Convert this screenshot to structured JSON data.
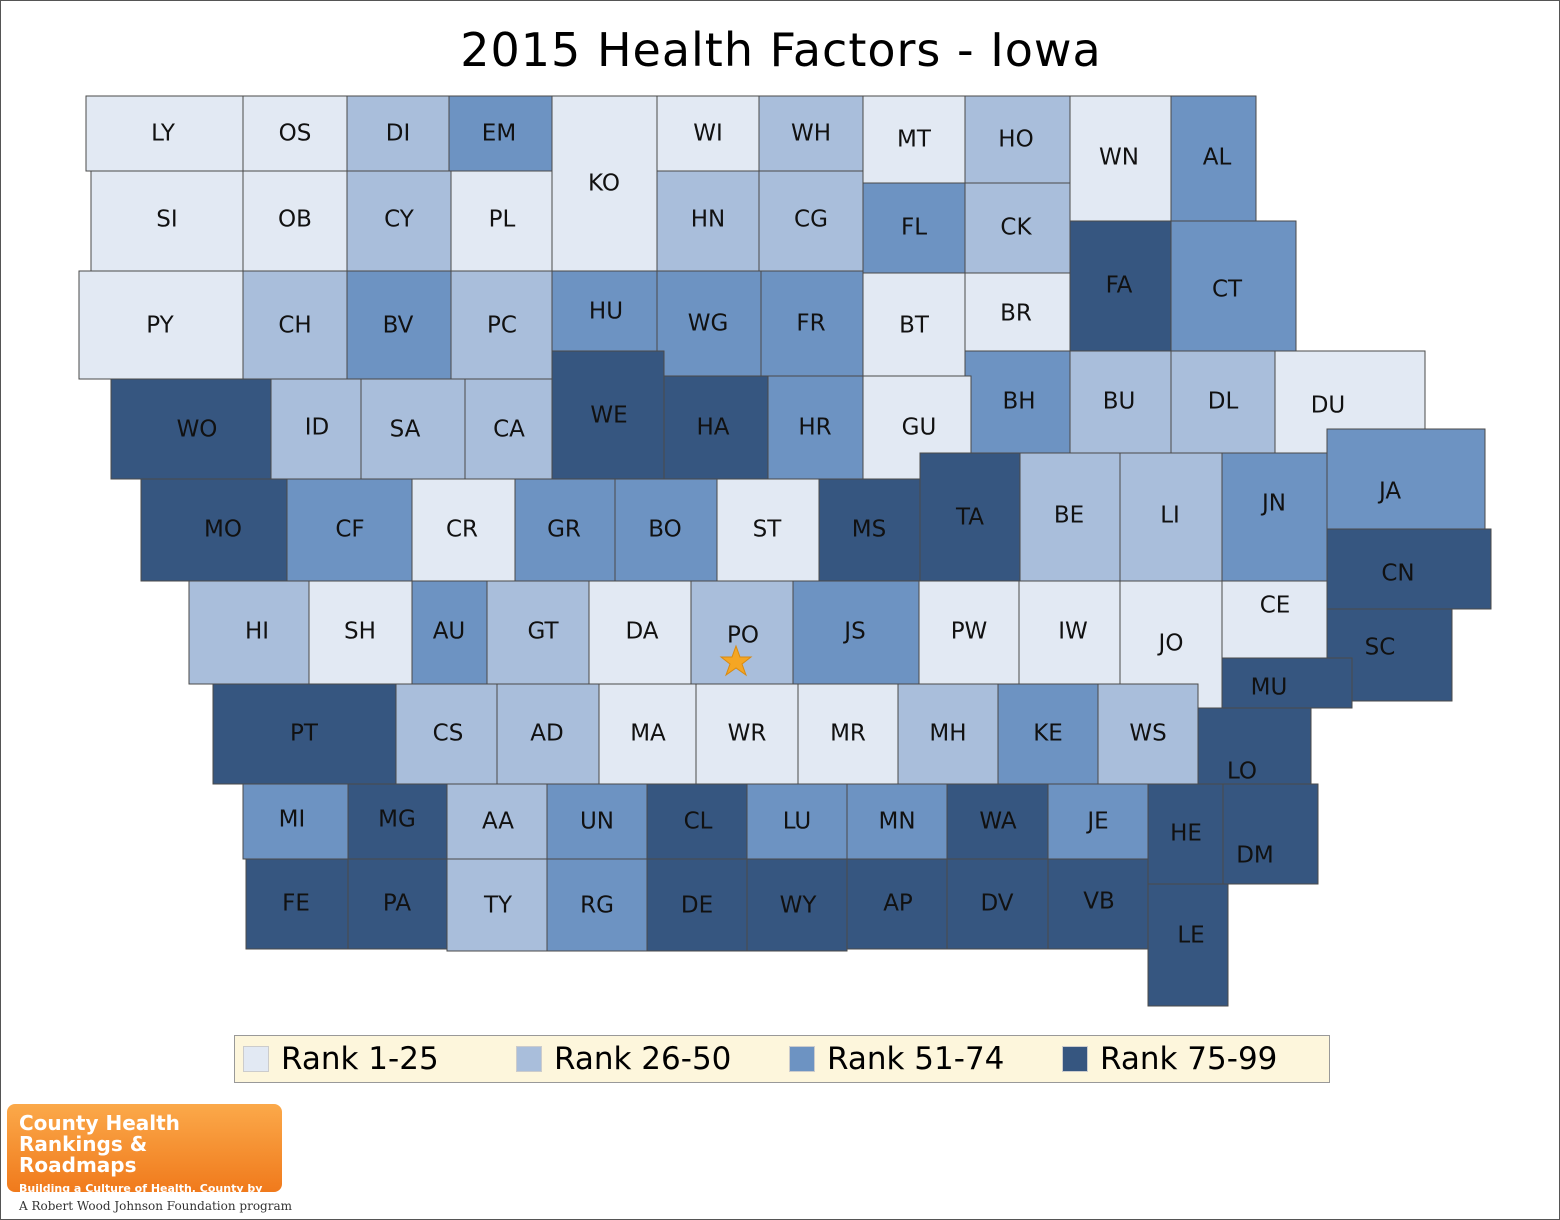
{
  "title": "2015 Health Factors - Iowa",
  "colors": {
    "rank1": "#e2e9f3",
    "rank2": "#a9bedb",
    "rank3": "#6d93c2",
    "rank4": "#365680",
    "star": "#f5a623"
  },
  "legend": [
    {
      "label": "Rank 1-25",
      "color": "#e2e9f3"
    },
    {
      "label": "Rank 26-50",
      "color": "#a9bedb"
    },
    {
      "label": "Rank 51-74",
      "color": "#6d93c2"
    },
    {
      "label": "Rank 75-99",
      "color": "#365680"
    }
  ],
  "counties": [
    {
      "abbr": "LY",
      "rank_group": 1
    },
    {
      "abbr": "OS",
      "rank_group": 1
    },
    {
      "abbr": "DI",
      "rank_group": 2
    },
    {
      "abbr": "EM",
      "rank_group": 3
    },
    {
      "abbr": "KO",
      "rank_group": 1
    },
    {
      "abbr": "WI",
      "rank_group": 1
    },
    {
      "abbr": "WH",
      "rank_group": 2
    },
    {
      "abbr": "MT",
      "rank_group": 1
    },
    {
      "abbr": "HO",
      "rank_group": 2
    },
    {
      "abbr": "WN",
      "rank_group": 1
    },
    {
      "abbr": "AL",
      "rank_group": 3
    },
    {
      "abbr": "SI",
      "rank_group": 1
    },
    {
      "abbr": "OB",
      "rank_group": 1
    },
    {
      "abbr": "CY",
      "rank_group": 2
    },
    {
      "abbr": "PL",
      "rank_group": 1
    },
    {
      "abbr": "HN",
      "rank_group": 2
    },
    {
      "abbr": "CG",
      "rank_group": 2
    },
    {
      "abbr": "FL",
      "rank_group": 3
    },
    {
      "abbr": "CK",
      "rank_group": 2
    },
    {
      "abbr": "FA",
      "rank_group": 4
    },
    {
      "abbr": "CT",
      "rank_group": 3
    },
    {
      "abbr": "PY",
      "rank_group": 1
    },
    {
      "abbr": "CH",
      "rank_group": 2
    },
    {
      "abbr": "BV",
      "rank_group": 3
    },
    {
      "abbr": "PC",
      "rank_group": 2
    },
    {
      "abbr": "HU",
      "rank_group": 3
    },
    {
      "abbr": "WG",
      "rank_group": 3
    },
    {
      "abbr": "FR",
      "rank_group": 3
    },
    {
      "abbr": "BT",
      "rank_group": 1
    },
    {
      "abbr": "BR",
      "rank_group": 1
    },
    {
      "abbr": "BH",
      "rank_group": 3
    },
    {
      "abbr": "BU",
      "rank_group": 2
    },
    {
      "abbr": "DL",
      "rank_group": 2
    },
    {
      "abbr": "DU",
      "rank_group": 1
    },
    {
      "abbr": "WO",
      "rank_group": 4
    },
    {
      "abbr": "ID",
      "rank_group": 2
    },
    {
      "abbr": "SA",
      "rank_group": 2
    },
    {
      "abbr": "CA",
      "rank_group": 2
    },
    {
      "abbr": "WE",
      "rank_group": 4
    },
    {
      "abbr": "HA",
      "rank_group": 4
    },
    {
      "abbr": "HR",
      "rank_group": 3
    },
    {
      "abbr": "GU",
      "rank_group": 1
    },
    {
      "abbr": "MO",
      "rank_group": 4
    },
    {
      "abbr": "CF",
      "rank_group": 3
    },
    {
      "abbr": "CR",
      "rank_group": 1
    },
    {
      "abbr": "GR",
      "rank_group": 3
    },
    {
      "abbr": "BO",
      "rank_group": 3
    },
    {
      "abbr": "ST",
      "rank_group": 1
    },
    {
      "abbr": "MS",
      "rank_group": 4
    },
    {
      "abbr": "TA",
      "rank_group": 4
    },
    {
      "abbr": "BE",
      "rank_group": 2
    },
    {
      "abbr": "LI",
      "rank_group": 2
    },
    {
      "abbr": "JN",
      "rank_group": 3
    },
    {
      "abbr": "JA",
      "rank_group": 3
    },
    {
      "abbr": "CN",
      "rank_group": 4
    },
    {
      "abbr": "HI",
      "rank_group": 2
    },
    {
      "abbr": "SH",
      "rank_group": 1
    },
    {
      "abbr": "AU",
      "rank_group": 3
    },
    {
      "abbr": "GT",
      "rank_group": 2
    },
    {
      "abbr": "DA",
      "rank_group": 1
    },
    {
      "abbr": "PO",
      "rank_group": 2
    },
    {
      "abbr": "JS",
      "rank_group": 3
    },
    {
      "abbr": "PW",
      "rank_group": 1
    },
    {
      "abbr": "IW",
      "rank_group": 1
    },
    {
      "abbr": "JO",
      "rank_group": 1
    },
    {
      "abbr": "CE",
      "rank_group": 1
    },
    {
      "abbr": "SC",
      "rank_group": 4
    },
    {
      "abbr": "PT",
      "rank_group": 4
    },
    {
      "abbr": "CS",
      "rank_group": 2
    },
    {
      "abbr": "AD",
      "rank_group": 2
    },
    {
      "abbr": "MA",
      "rank_group": 1
    },
    {
      "abbr": "WR",
      "rank_group": 1
    },
    {
      "abbr": "MR",
      "rank_group": 1
    },
    {
      "abbr": "MH",
      "rank_group": 2
    },
    {
      "abbr": "KE",
      "rank_group": 3
    },
    {
      "abbr": "WS",
      "rank_group": 2
    },
    {
      "abbr": "MU",
      "rank_group": 4
    },
    {
      "abbr": "LO",
      "rank_group": 4
    },
    {
      "abbr": "MI",
      "rank_group": 3
    },
    {
      "abbr": "MG",
      "rank_group": 4
    },
    {
      "abbr": "AA",
      "rank_group": 2
    },
    {
      "abbr": "UN",
      "rank_group": 3
    },
    {
      "abbr": "CL",
      "rank_group": 4
    },
    {
      "abbr": "LU",
      "rank_group": 3
    },
    {
      "abbr": "MN",
      "rank_group": 3
    },
    {
      "abbr": "WA",
      "rank_group": 4
    },
    {
      "abbr": "JE",
      "rank_group": 3
    },
    {
      "abbr": "HE",
      "rank_group": 4
    },
    {
      "abbr": "DM",
      "rank_group": 4
    },
    {
      "abbr": "FE",
      "rank_group": 4
    },
    {
      "abbr": "PA",
      "rank_group": 4
    },
    {
      "abbr": "TY",
      "rank_group": 2
    },
    {
      "abbr": "RG",
      "rank_group": 3
    },
    {
      "abbr": "DE",
      "rank_group": 4
    },
    {
      "abbr": "WY",
      "rank_group": 4
    },
    {
      "abbr": "AP",
      "rank_group": 4
    },
    {
      "abbr": "DV",
      "rank_group": 4
    },
    {
      "abbr": "VB",
      "rank_group": 4
    },
    {
      "abbr": "LE",
      "rank_group": 4
    }
  ],
  "highlight_county": "PO",
  "logo": {
    "line1": "County Health",
    "line2": "Rankings & Roadmaps",
    "tagline": "Building a Culture of Health, County by County"
  },
  "foundation": "A Robert Wood Johnson Foundation program"
}
